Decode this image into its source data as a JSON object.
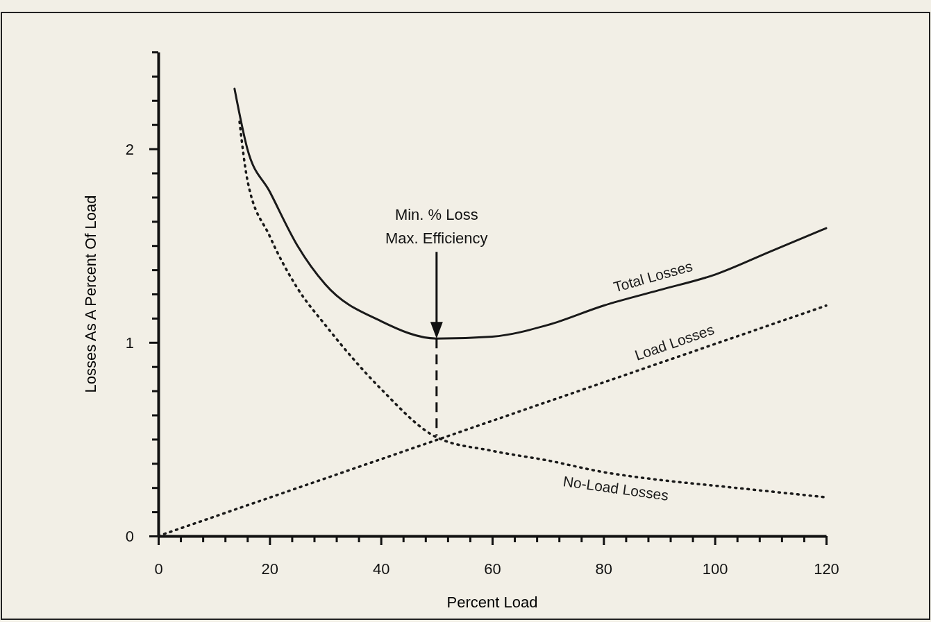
{
  "chart_data": {
    "type": "line",
    "xlabel": "Percent Load",
    "ylabel": "Losses As A Percent Of Load",
    "xlim": [
      0,
      120
    ],
    "xticks": [
      0,
      {
        "value": 4,
        "label": null
      },
      {
        "value": 8,
        "label": null
      },
      {
        "value": 12,
        "label": null
      },
      {
        "value": 16,
        "label": null
      },
      20,
      {
        "value": 24,
        "label": null
      },
      {
        "value": 28,
        "label": null
      },
      {
        "value": 32,
        "label": null
      },
      {
        "value": 36,
        "label": null
      },
      40,
      {
        "value": 44,
        "label": null
      },
      {
        "value": 48,
        "label": null
      },
      {
        "value": 52,
        "label": null
      },
      {
        "value": 56,
        "label": null
      },
      60,
      {
        "value": 64,
        "label": null
      },
      {
        "value": 68,
        "label": null
      },
      {
        "value": 72,
        "label": null
      },
      {
        "value": 76,
        "label": null
      },
      80,
      {
        "value": 84,
        "label": null
      },
      {
        "value": 88,
        "label": null
      },
      {
        "value": 92,
        "label": null
      },
      {
        "value": 96,
        "label": null
      },
      100,
      {
        "value": 104,
        "label": null
      },
      {
        "value": 108,
        "label": null
      },
      {
        "value": 112,
        "label": null
      },
      {
        "value": 116,
        "label": null
      },
      120
    ],
    "ylim": [
      0,
      2.5
    ],
    "yticks": [
      0,
      {
        "value": 0.125,
        "label": null
      },
      {
        "value": 0.25,
        "label": null
      },
      {
        "value": 0.375,
        "label": null
      },
      {
        "value": 0.5,
        "label": null
      },
      {
        "value": 0.625,
        "label": null
      },
      {
        "value": 0.75,
        "label": null
      },
      {
        "value": 0.875,
        "label": null
      },
      1,
      {
        "value": 1.125,
        "label": null
      },
      {
        "value": 1.25,
        "label": null
      },
      {
        "value": 1.375,
        "label": null
      },
      {
        "value": 1.5,
        "label": null
      },
      {
        "value": 1.625,
        "label": null
      },
      {
        "value": 1.75,
        "label": null
      },
      {
        "value": 1.875,
        "label": null
      },
      2,
      {
        "value": 2.125,
        "label": null
      },
      {
        "value": 2.25,
        "label": null
      },
      {
        "value": 2.375,
        "label": null
      },
      {
        "value": 2.5,
        "label": null
      }
    ],
    "grid": false,
    "legend": false,
    "marker": "none",
    "series": [
      {
        "name": "Total Losses",
        "color": "#1a1a1a",
        "line_style": "solid",
        "x": [
          13.7,
          16,
          20,
          25,
          30,
          40,
          50,
          60,
          70,
          80,
          90,
          100,
          110,
          120
        ],
        "values": [
          2.31,
          2.0,
          1.78,
          1.5,
          1.3,
          1.11,
          1.02,
          1.03,
          1.09,
          1.19,
          1.27,
          1.35,
          1.47,
          1.59
        ]
      },
      {
        "name": "Load Losses",
        "color": "#1a1a1a",
        "line_style": "dotted",
        "x": [
          0,
          120
        ],
        "values": [
          0,
          1.19
        ]
      },
      {
        "name": "No-Load Losses",
        "color": "#1a1a1a",
        "line_style": "dotted",
        "x": [
          14.6,
          16,
          20,
          25,
          30,
          40,
          50,
          60,
          70,
          80,
          90,
          100,
          110,
          120
        ],
        "values": [
          2.14,
          1.84,
          1.55,
          1.28,
          1.09,
          0.76,
          0.51,
          0.44,
          0.39,
          0.33,
          0.29,
          0.26,
          0.23,
          0.2
        ]
      }
    ],
    "annotations": [
      "Min. % Loss\nMax. Efficiency"
    ]
  }
}
